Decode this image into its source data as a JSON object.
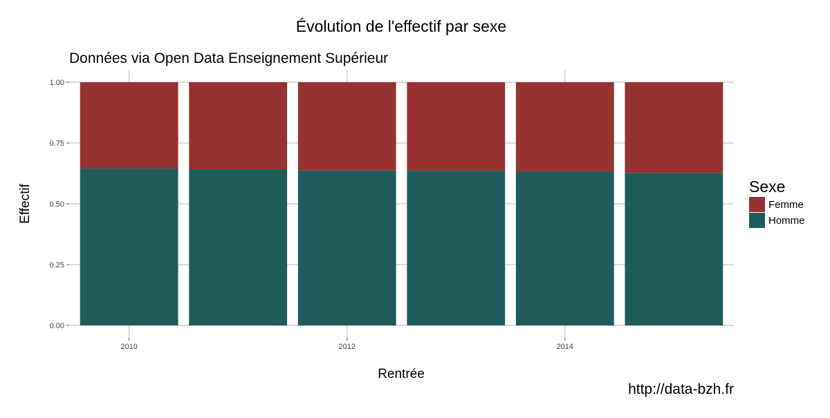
{
  "chart_data": {
    "type": "bar",
    "stacked": "proportion",
    "title": "Évolution de l'effectif par sexe",
    "subtitle": "Données via Open Data Enseignement Supérieur",
    "xlabel": "Rentrée",
    "ylabel": "Effectif",
    "caption": "http://data-bzh.fr",
    "x": [
      2010,
      2011,
      2012,
      2013,
      2014,
      2015
    ],
    "x_ticks": [
      "2010",
      "2012",
      "2014"
    ],
    "x_tick_values": [
      2010,
      2012,
      2014
    ],
    "xlim": [
      2009.45,
      2015.55
    ],
    "ylim": [
      0,
      1
    ],
    "y_ticks": [
      "0.00",
      "0.25",
      "0.50",
      "0.75",
      "1.00"
    ],
    "y_tick_values": [
      0,
      0.25,
      0.5,
      0.75,
      1.0
    ],
    "grid": true,
    "legend": {
      "title": "Sexe",
      "position": "right"
    },
    "series": [
      {
        "name": "Homme",
        "color": "#1f5b5b",
        "values": [
          0.645,
          0.642,
          0.637,
          0.636,
          0.632,
          0.626
        ]
      },
      {
        "name": "Femme",
        "color": "#963232",
        "values": [
          0.355,
          0.358,
          0.363,
          0.364,
          0.368,
          0.374
        ]
      }
    ],
    "legend_items": [
      {
        "name": "Femme",
        "color": "#963232"
      },
      {
        "name": "Homme",
        "color": "#1f5b5b"
      }
    ]
  }
}
